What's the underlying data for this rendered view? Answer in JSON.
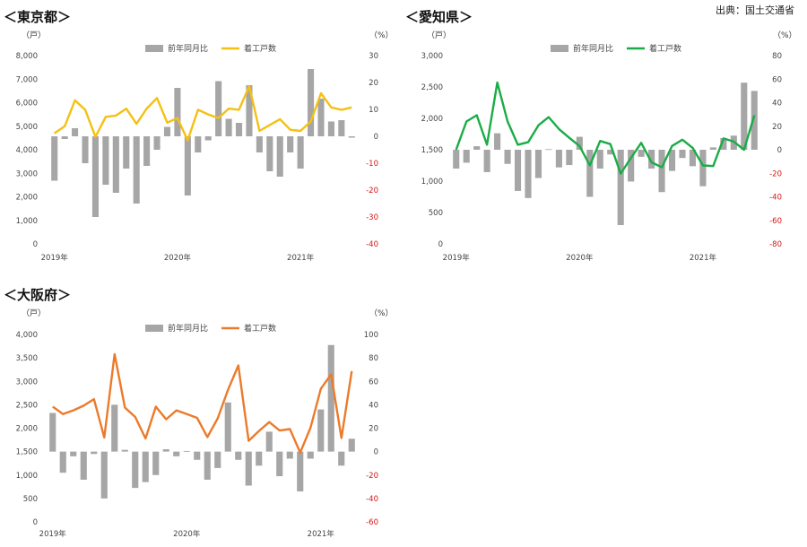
{
  "source": "出典：国土交通省",
  "chart_data": [
    {
      "type": "bar+line",
      "title": "＜東京都＞",
      "left_unit": "（戸）",
      "right_unit": "（%）",
      "left_ylim": [
        0,
        8000
      ],
      "left_ticks": [
        "0",
        "1,000",
        "2,000",
        "3,000",
        "4,000",
        "5,000",
        "6,000",
        "7,000",
        "8,000"
      ],
      "right_ylim": [
        -40,
        30
      ],
      "right_ticks": [
        "-40",
        "-30",
        "-20",
        "-10",
        "0",
        "10",
        "20",
        "30"
      ],
      "x_labels": [
        {
          "label": "2019年",
          "index": 0
        },
        {
          "label": "2020年",
          "index": 12
        },
        {
          "label": "2021年",
          "index": 24
        }
      ],
      "colors": {
        "bar": "#a6a6a6",
        "line": "#f5c013",
        "negative_tick": "#d81414"
      },
      "bar_series": {
        "name": "前年同月比",
        "values": [
          -16.5,
          -1,
          3,
          -10,
          -30,
          -18,
          -21,
          -12,
          -25,
          -11,
          -5,
          3.5,
          18,
          -22,
          -6,
          -1.5,
          20.5,
          6.5,
          5,
          19,
          -6,
          -13,
          -15,
          -6,
          -12,
          25,
          14,
          5.5,
          6,
          -0.5
        ]
      },
      "line_series": {
        "name": "着工戸数",
        "values": [
          4700,
          5000,
          6100,
          5700,
          4550,
          5400,
          5450,
          5750,
          5100,
          5750,
          6200,
          5150,
          5350,
          4400,
          5700,
          5500,
          5350,
          5750,
          5700,
          6700,
          4800,
          5050,
          5300,
          4850,
          4800,
          5200,
          6400,
          5800,
          5700,
          5800
        ]
      }
    },
    {
      "type": "bar+line",
      "title": "＜愛知県＞",
      "left_unit": "（戸）",
      "right_unit": "（%）",
      "left_ylim": [
        0,
        3000
      ],
      "left_ticks": [
        "0",
        "500",
        "1,000",
        "1,500",
        "2,000",
        "2,500",
        "3,000"
      ],
      "right_ylim": [
        -80,
        80
      ],
      "right_ticks": [
        "-80",
        "-60",
        "-40",
        "-20",
        "0",
        "20",
        "40",
        "60",
        "80"
      ],
      "x_labels": [
        {
          "label": "2019年",
          "index": 0
        },
        {
          "label": "2020年",
          "index": 12
        },
        {
          "label": "2021年",
          "index": 24
        }
      ],
      "colors": {
        "bar": "#a6a6a6",
        "line": "#1aac46",
        "negative_tick": "#d81414"
      },
      "bar_series": {
        "name": "前年同月比",
        "values": [
          -16,
          -11,
          3,
          -19,
          14,
          -12,
          -35,
          -41,
          -24,
          0.5,
          -15,
          -13,
          11,
          -40,
          -16,
          -4,
          -64,
          -27,
          -6,
          -16,
          -36,
          -18,
          -7,
          -14,
          -31,
          2,
          10,
          12,
          57,
          50
        ]
      },
      "line_series": {
        "name": "着工戸数",
        "values": [
          1500,
          1950,
          2050,
          1580,
          2570,
          1950,
          1580,
          1620,
          1890,
          2020,
          1830,
          1690,
          1560,
          1250,
          1640,
          1590,
          1120,
          1370,
          1610,
          1300,
          1220,
          1560,
          1660,
          1530,
          1250,
          1240,
          1680,
          1630,
          1500,
          2050
        ]
      }
    },
    {
      "type": "bar+line",
      "title": "＜大阪府＞",
      "left_unit": "（戸）",
      "right_unit": "（%）",
      "left_ylim": [
        0,
        4000
      ],
      "left_ticks": [
        "0",
        "500",
        "1,000",
        "1,500",
        "2,000",
        "2,500",
        "3,000",
        "3,500",
        "4,000"
      ],
      "right_ylim": [
        -60,
        100
      ],
      "right_ticks": [
        "-60",
        "-40",
        "-20",
        "0",
        "20",
        "40",
        "60",
        "80",
        "100"
      ],
      "x_labels": [
        {
          "label": "2019年",
          "index": 0
        },
        {
          "label": "2020年",
          "index": 13
        },
        {
          "label": "2021年",
          "index": 26
        }
      ],
      "colors": {
        "bar": "#a6a6a6",
        "line": "#ec7a2b",
        "negative_tick": "#d81414"
      },
      "bar_series": {
        "name": "前年同月比",
        "values": [
          33,
          -18,
          -4,
          -24,
          -2,
          -40,
          40,
          1.5,
          -31,
          -26,
          -20,
          2,
          -4,
          0.5,
          -7,
          -24,
          -14,
          42,
          -7,
          -29,
          -12,
          17,
          -21,
          -6,
          -34,
          -6,
          36,
          91,
          -12,
          11
        ]
      },
      "line_series": {
        "name": "着工戸数",
        "values": [
          2460,
          2300,
          2380,
          2480,
          2620,
          1800,
          3580,
          2440,
          2240,
          1780,
          2460,
          2190,
          2380,
          2300,
          2220,
          1810,
          2210,
          2820,
          3340,
          1730,
          1940,
          2130,
          1950,
          1980,
          1480,
          2010,
          2840,
          3150,
          1790,
          3220
        ]
      }
    }
  ]
}
